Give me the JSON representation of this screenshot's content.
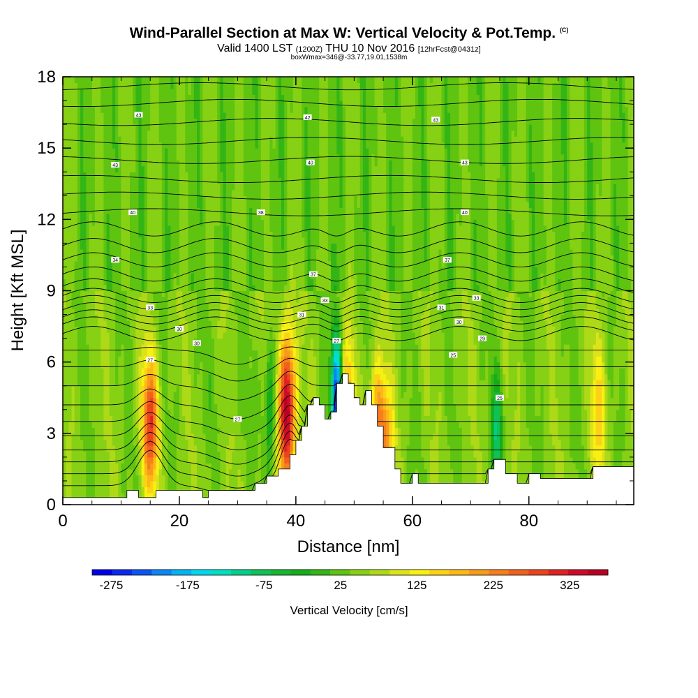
{
  "header": {
    "title_main": "Wind-Parallel Section at Max W: Vertical Velocity & Pot.Temp.",
    "title_mark": "(C)",
    "valid_a": "Valid 1400 LST",
    "valid_b": "(1200Z)",
    "valid_c": "THU 10 Nov 2016",
    "valid_d": "[12hrFcst@0431z]",
    "box_info": "boxWmax=346@-33.77,19.01,1538m"
  },
  "chart_data": {
    "type": "heatmap",
    "xlabel": "Distance [nm]",
    "ylabel": "Height [Kft MSL]",
    "xlim": [
      0,
      98
    ],
    "ylim": [
      0,
      18
    ],
    "xticks": [
      0,
      20,
      40,
      60,
      80
    ],
    "yticks": [
      0,
      3,
      6,
      9,
      12,
      15,
      18
    ],
    "colorbar": {
      "label": "Vertical Velocity [cm/s]",
      "ticks": [
        -275,
        -175,
        -75,
        25,
        125,
        225,
        325
      ],
      "min": -300,
      "max": 375,
      "step": 25,
      "colors": [
        "#0000e6",
        "#0a2aef",
        "#0b55f2",
        "#0b86f4",
        "#03b2f5",
        "#00d8ee",
        "#00e0c0",
        "#00d08a",
        "#0fc257",
        "#18b633",
        "#15ad1a",
        "#34b516",
        "#5ec410",
        "#86d114",
        "#aed916",
        "#dce31a",
        "#f7f010",
        "#fdd216",
        "#fbb817",
        "#f89b1a",
        "#f67e1c",
        "#f1601d",
        "#ea441f",
        "#de2323",
        "#cc0a2a",
        "#b80025"
      ]
    },
    "updrafts": [
      {
        "x": 15.0,
        "z_top": 6.2,
        "peak_cms": 250
      },
      {
        "x": 38.5,
        "z_top": 7.2,
        "peak_cms": 346
      },
      {
        "x": 49.0,
        "z_top": 7.0,
        "peak_cms": 150
      },
      {
        "x": 54.0,
        "z_top": 6.0,
        "peak_cms": 175
      },
      {
        "x": 55.5,
        "z_top": 5.0,
        "peak_cms": 130
      },
      {
        "x": 92.0,
        "z_top": 7.0,
        "peak_cms": 110
      }
    ],
    "downdrafts": [
      {
        "x": 47.0,
        "z_top": 7.0,
        "min_cms": -275
      },
      {
        "x": 74.5,
        "z_top": 5.0,
        "min_cms": -100
      },
      {
        "x": 35.5,
        "z_top": 6.5,
        "min_cms": -75
      }
    ],
    "terrain": [
      [
        0,
        0.3
      ],
      [
        11,
        0.3
      ],
      [
        11,
        0.6
      ],
      [
        13,
        0.6
      ],
      [
        13,
        0.3
      ],
      [
        16,
        0.3
      ],
      [
        16,
        0.6
      ],
      [
        24,
        0.6
      ],
      [
        24,
        0.3
      ],
      [
        25,
        0.3
      ],
      [
        25,
        0.6
      ],
      [
        33,
        0.6
      ],
      [
        33,
        0.9
      ],
      [
        35,
        0.9
      ],
      [
        35,
        1.2
      ],
      [
        37,
        1.2
      ],
      [
        37,
        1.5
      ],
      [
        39,
        1.5
      ],
      [
        39,
        2.1
      ],
      [
        40,
        2.1
      ],
      [
        40,
        2.7
      ],
      [
        41,
        2.7
      ],
      [
        41,
        3.3
      ],
      [
        42,
        3.3
      ],
      [
        42,
        4.2
      ],
      [
        43,
        4.2
      ],
      [
        43,
        4.5
      ],
      [
        44,
        4.5
      ],
      [
        44,
        4.2
      ],
      [
        45,
        4.2
      ],
      [
        45,
        3.6
      ],
      [
        46,
        3.6
      ],
      [
        46,
        3.9
      ],
      [
        47,
        3.9
      ],
      [
        47,
        5.1
      ],
      [
        48,
        5.1
      ],
      [
        48,
        5.5
      ],
      [
        49,
        5.5
      ],
      [
        49,
        5.1
      ],
      [
        50,
        5.1
      ],
      [
        50,
        4.5
      ],
      [
        51,
        4.5
      ],
      [
        51,
        4.2
      ],
      [
        52,
        4.2
      ],
      [
        52,
        4.8
      ],
      [
        53,
        4.8
      ],
      [
        53,
        4.2
      ],
      [
        54,
        4.2
      ],
      [
        54,
        3.3
      ],
      [
        55,
        3.3
      ],
      [
        55,
        2.4
      ],
      [
        57,
        2.4
      ],
      [
        57,
        1.5
      ],
      [
        58,
        1.5
      ],
      [
        58,
        0.9
      ],
      [
        60,
        0.9
      ],
      [
        60,
        1.3
      ],
      [
        61,
        1.3
      ],
      [
        61,
        0.9
      ],
      [
        73,
        0.9
      ],
      [
        73,
        1.5
      ],
      [
        74,
        1.5
      ],
      [
        74,
        1.9
      ],
      [
        76,
        1.9
      ],
      [
        76,
        1.3
      ],
      [
        78,
        1.3
      ],
      [
        78,
        0.9
      ],
      [
        80,
        0.9
      ],
      [
        80,
        1.3
      ],
      [
        82,
        1.3
      ],
      [
        82,
        1.1
      ],
      [
        91,
        1.1
      ],
      [
        91,
        1.6
      ],
      [
        98,
        1.6
      ]
    ],
    "theta_labels": [
      {
        "x": 13,
        "z": 16.4,
        "text": "43"
      },
      {
        "x": 42,
        "z": 16.3,
        "text": "42"
      },
      {
        "x": 64,
        "z": 16.2,
        "text": "43"
      },
      {
        "x": 9,
        "z": 14.3,
        "text": "43"
      },
      {
        "x": 42.5,
        "z": 14.4,
        "text": "40"
      },
      {
        "x": 69,
        "z": 14.4,
        "text": "43"
      },
      {
        "x": 12,
        "z": 12.3,
        "text": "40"
      },
      {
        "x": 34,
        "z": 12.3,
        "text": "38"
      },
      {
        "x": 69,
        "z": 12.3,
        "text": "40"
      },
      {
        "x": 9,
        "z": 10.3,
        "text": "34"
      },
      {
        "x": 43,
        "z": 9.7,
        "text": "37"
      },
      {
        "x": 66,
        "z": 10.3,
        "text": "37"
      },
      {
        "x": 15,
        "z": 8.3,
        "text": "33"
      },
      {
        "x": 45,
        "z": 8.6,
        "text": "33"
      },
      {
        "x": 71,
        "z": 8.7,
        "text": "33"
      },
      {
        "x": 41,
        "z": 8.0,
        "text": "31"
      },
      {
        "x": 65,
        "z": 8.3,
        "text": "31"
      },
      {
        "x": 20,
        "z": 7.4,
        "text": "30"
      },
      {
        "x": 68,
        "z": 7.7,
        "text": "30"
      },
      {
        "x": 23,
        "z": 6.8,
        "text": "30"
      },
      {
        "x": 72,
        "z": 7.0,
        "text": "29"
      },
      {
        "x": 47,
        "z": 6.9,
        "text": "27"
      },
      {
        "x": 15,
        "z": 6.1,
        "text": "27"
      },
      {
        "x": 67,
        "z": 6.3,
        "text": "25"
      },
      {
        "x": 30,
        "z": 3.6,
        "text": "27"
      },
      {
        "x": 75,
        "z": 4.5,
        "text": "25"
      }
    ]
  }
}
